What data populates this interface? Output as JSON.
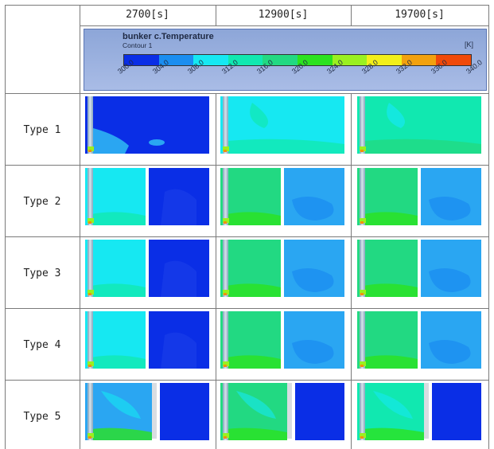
{
  "columns": [
    "2700[s]",
    "12900[s]",
    "19700[s]"
  ],
  "rows": [
    "Type 1",
    "Type 2",
    "Type 3",
    "Type 4",
    "Type 5"
  ],
  "legend": {
    "title": "bunker c.Temperature",
    "subtitle": "Contour 1",
    "unit": "[K]",
    "ticks": [
      "300.0",
      "304.0",
      "308.0",
      "312.0",
      "316.0",
      "320.0",
      "324.0",
      "328.0",
      "332.0",
      "336.0",
      "340.0"
    ],
    "colors": [
      "#0a2ee6",
      "#1b8ef0",
      "#16e8f2",
      "#11e8b0",
      "#22d982",
      "#2ce21f",
      "#9af020",
      "#f2ef1a",
      "#f2a10e",
      "#f04a0a"
    ]
  },
  "palette": {
    "deep_blue": "#0a2ee6",
    "blue": "#1b8ef0",
    "light_blue": "#2aa6f2",
    "cyan": "#16e8f2",
    "aqua": "#11e8b0",
    "green": "#22d982",
    "lime": "#2ce21f",
    "yellow_green": "#9af020"
  }
}
